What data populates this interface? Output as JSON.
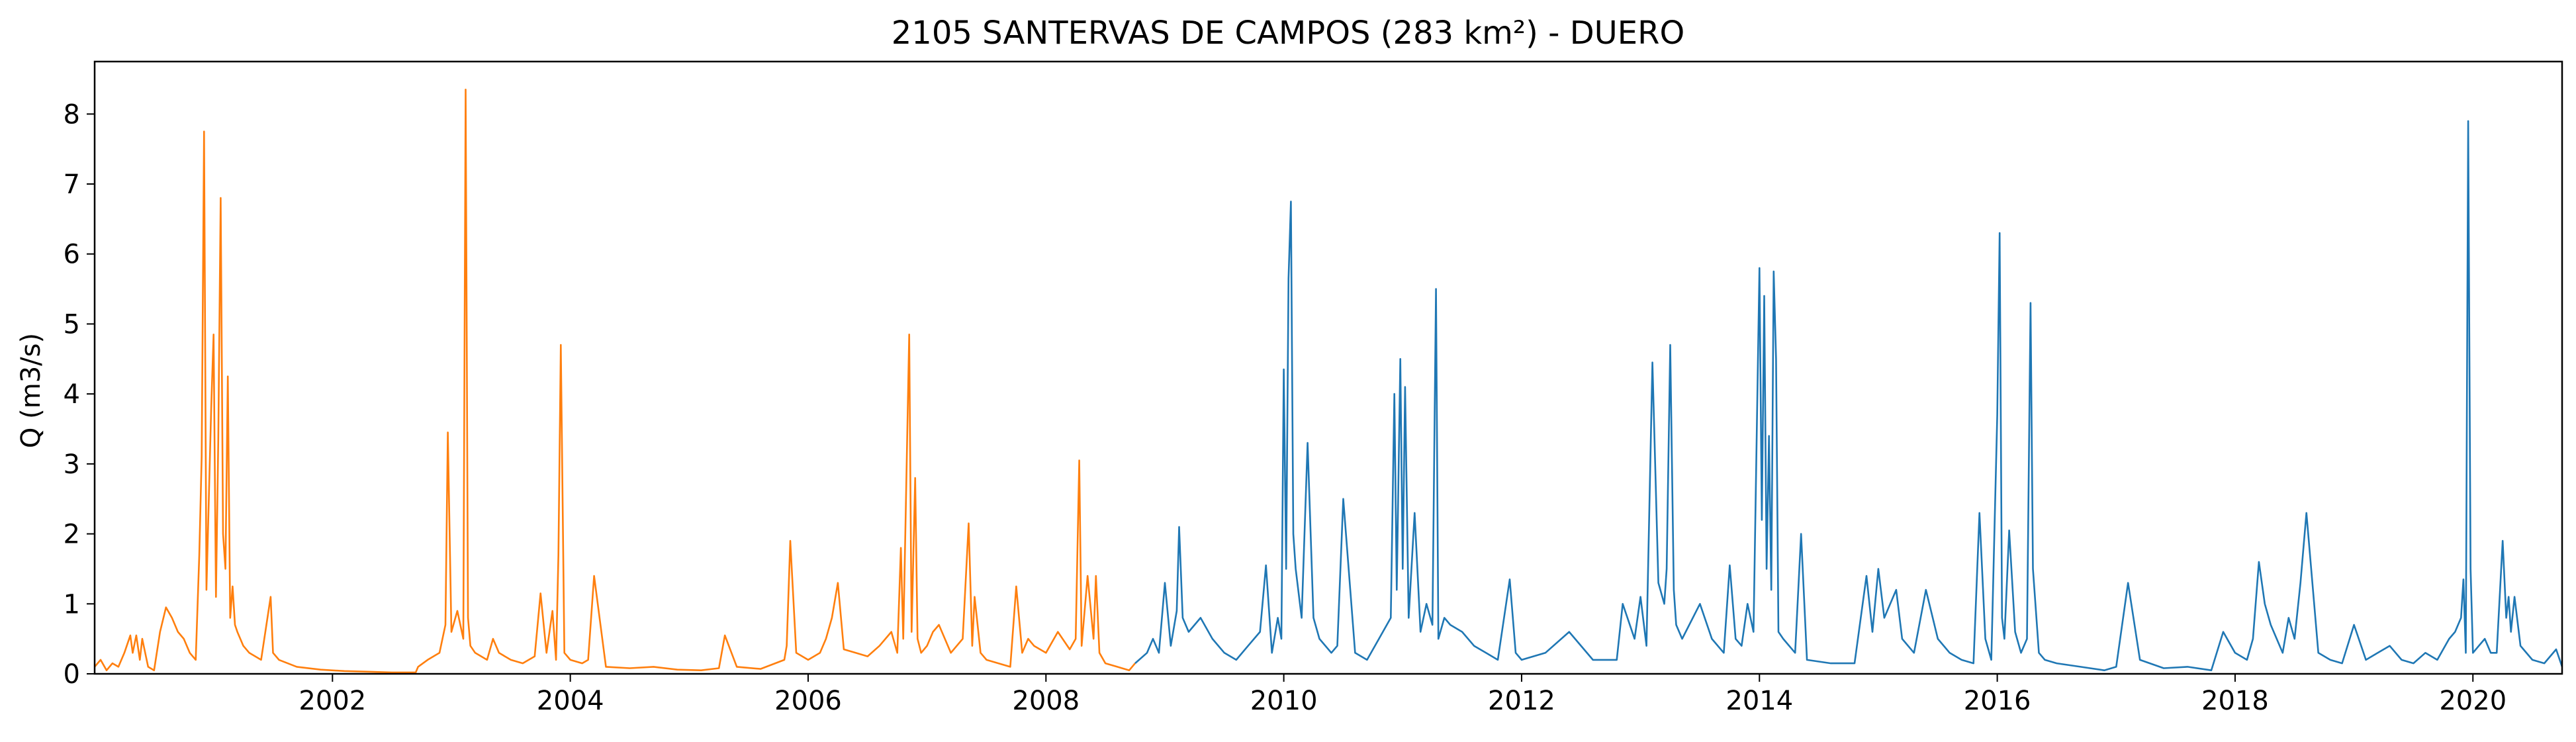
{
  "chart_data": {
    "type": "line",
    "title": "2105 SANTERVAS DE CAMPOS (283 km²) - DUERO",
    "xlabel": "",
    "ylabel": "Q (m3/s)",
    "xlim": [
      2000.0,
      2020.75
    ],
    "ylim": [
      0,
      8.75
    ],
    "x_ticks": [
      2002,
      2004,
      2006,
      2008,
      2010,
      2012,
      2014,
      2016,
      2018,
      2020
    ],
    "y_ticks": [
      0,
      1,
      2,
      3,
      4,
      5,
      6,
      7,
      8
    ],
    "grid": false,
    "legend": "none",
    "series": [
      {
        "color": "#ff7f0e",
        "x": [
          2000.0,
          2000.05,
          2000.1,
          2000.15,
          2000.2,
          2000.25,
          2000.3,
          2000.32,
          2000.35,
          2000.38,
          2000.4,
          2000.45,
          2000.5,
          2000.55,
          2000.6,
          2000.65,
          2000.7,
          2000.75,
          2000.8,
          2000.85,
          2000.88,
          2000.9,
          2000.92,
          2000.94,
          2000.96,
          2000.98,
          2001.0,
          2001.02,
          2001.04,
          2001.06,
          2001.08,
          2001.1,
          2001.12,
          2001.14,
          2001.16,
          2001.18,
          2001.2,
          2001.25,
          2001.3,
          2001.4,
          2001.48,
          2001.5,
          2001.55,
          2001.7,
          2001.9,
          2002.1,
          2002.3,
          2002.5,
          2002.7,
          2002.72,
          2002.8,
          2002.9,
          2002.95,
          2002.97,
          2003.0,
          2003.05,
          2003.1,
          2003.12,
          2003.14,
          2003.16,
          2003.2,
          2003.3,
          2003.35,
          2003.4,
          2003.5,
          2003.6,
          2003.7,
          2003.75,
          2003.8,
          2003.85,
          2003.88,
          2003.9,
          2003.92,
          2003.95,
          2004.0,
          2004.1,
          2004.15,
          2004.2,
          2004.3,
          2004.5,
          2004.7,
          2004.9,
          2005.1,
          2005.25,
          2005.3,
          2005.4,
          2005.6,
          2005.8,
          2005.82,
          2005.85,
          2005.9,
          2006.0,
          2006.1,
          2006.15,
          2006.2,
          2006.25,
          2006.3,
          2006.4,
          2006.5,
          2006.6,
          2006.7,
          2006.75,
          2006.78,
          2006.8,
          2006.85,
          2006.87,
          2006.9,
          2006.92,
          2006.95,
          2007.0,
          2007.05,
          2007.1,
          2007.2,
          2007.3,
          2007.35,
          2007.38,
          2007.4,
          2007.45,
          2007.5,
          2007.6,
          2007.7,
          2007.75,
          2007.8,
          2007.85,
          2007.9,
          2008.0,
          2008.1,
          2008.2,
          2008.25,
          2008.28,
          2008.3,
          2008.35,
          2008.4,
          2008.42,
          2008.45,
          2008.5,
          2008.6,
          2008.7,
          2008.75
        ],
        "values": [
          0.1,
          0.2,
          0.05,
          0.15,
          0.1,
          0.3,
          0.55,
          0.3,
          0.55,
          0.2,
          0.5,
          0.1,
          0.05,
          0.6,
          0.95,
          0.8,
          0.6,
          0.5,
          0.3,
          0.2,
          1.7,
          3.1,
          7.75,
          1.2,
          2.5,
          3.8,
          4.85,
          1.1,
          3.35,
          6.8,
          2.0,
          1.5,
          4.25,
          0.8,
          1.25,
          0.7,
          0.6,
          0.4,
          0.3,
          0.2,
          1.1,
          0.3,
          0.2,
          0.1,
          0.06,
          0.04,
          0.03,
          0.02,
          0.02,
          0.1,
          0.2,
          0.3,
          0.7,
          3.45,
          0.6,
          0.9,
          0.5,
          8.35,
          0.8,
          0.4,
          0.3,
          0.2,
          0.5,
          0.3,
          0.2,
          0.15,
          0.25,
          1.15,
          0.3,
          0.9,
          0.2,
          1.7,
          4.7,
          0.3,
          0.2,
          0.15,
          0.2,
          1.4,
          0.1,
          0.08,
          0.1,
          0.06,
          0.05,
          0.08,
          0.55,
          0.1,
          0.07,
          0.2,
          0.4,
          1.9,
          0.3,
          0.2,
          0.3,
          0.5,
          0.8,
          1.3,
          0.35,
          0.3,
          0.25,
          0.4,
          0.6,
          0.3,
          1.8,
          0.5,
          4.85,
          0.6,
          2.8,
          0.5,
          0.3,
          0.4,
          0.6,
          0.7,
          0.3,
          0.5,
          2.15,
          0.4,
          1.1,
          0.3,
          0.2,
          0.15,
          0.1,
          1.25,
          0.3,
          0.5,
          0.4,
          0.3,
          0.6,
          0.35,
          0.5,
          3.05,
          0.4,
          1.4,
          0.5,
          1.4,
          0.3,
          0.15,
          0.1,
          0.05,
          0.15
        ]
      },
      {
        "color": "#1f77b4",
        "x": [
          2008.75,
          2008.85,
          2008.9,
          2008.95,
          2009.0,
          2009.05,
          2009.1,
          2009.12,
          2009.15,
          2009.2,
          2009.3,
          2009.4,
          2009.5,
          2009.6,
          2009.7,
          2009.8,
          2009.85,
          2009.9,
          2009.95,
          2009.98,
          2010.0,
          2010.02,
          2010.04,
          2010.06,
          2010.08,
          2010.1,
          2010.15,
          2010.2,
          2010.25,
          2010.3,
          2010.4,
          2010.45,
          2010.5,
          2010.6,
          2010.7,
          2010.8,
          2010.9,
          2010.93,
          2010.95,
          2010.98,
          2011.0,
          2011.02,
          2011.05,
          2011.1,
          2011.15,
          2011.2,
          2011.25,
          2011.28,
          2011.3,
          2011.35,
          2011.4,
          2011.5,
          2011.6,
          2011.7,
          2011.8,
          2011.9,
          2011.95,
          2012.0,
          2012.2,
          2012.4,
          2012.6,
          2012.8,
          2012.85,
          2012.95,
          2013.0,
          2013.05,
          2013.1,
          2013.15,
          2013.2,
          2013.22,
          2013.25,
          2013.28,
          2013.3,
          2013.35,
          2013.5,
          2013.6,
          2013.7,
          2013.75,
          2013.8,
          2013.85,
          2013.9,
          2013.95,
          2014.0,
          2014.02,
          2014.04,
          2014.06,
          2014.08,
          2014.1,
          2014.12,
          2014.14,
          2014.16,
          2014.2,
          2014.3,
          2014.35,
          2014.4,
          2014.6,
          2014.8,
          2014.9,
          2014.95,
          2015.0,
          2015.05,
          2015.1,
          2015.15,
          2015.2,
          2015.3,
          2015.4,
          2015.5,
          2015.6,
          2015.7,
          2015.8,
          2015.85,
          2015.9,
          2015.95,
          2016.0,
          2016.02,
          2016.04,
          2016.06,
          2016.1,
          2016.15,
          2016.2,
          2016.25,
          2016.28,
          2016.3,
          2016.35,
          2016.4,
          2016.5,
          2016.7,
          2016.9,
          2017.0,
          2017.1,
          2017.2,
          2017.4,
          2017.6,
          2017.8,
          2017.9,
          2018.0,
          2018.1,
          2018.15,
          2018.2,
          2018.25,
          2018.3,
          2018.35,
          2018.4,
          2018.45,
          2018.5,
          2018.55,
          2018.6,
          2018.7,
          2018.8,
          2018.9,
          2019.0,
          2019.1,
          2019.2,
          2019.3,
          2019.4,
          2019.5,
          2019.6,
          2019.7,
          2019.8,
          2019.85,
          2019.9,
          2019.92,
          2019.94,
          2019.96,
          2019.98,
          2020.0,
          2020.05,
          2020.1,
          2020.15,
          2020.2,
          2020.25,
          2020.28,
          2020.3,
          2020.32,
          2020.35,
          2020.4,
          2020.5,
          2020.6,
          2020.7,
          2020.75
        ],
        "values": [
          0.15,
          0.3,
          0.5,
          0.3,
          1.3,
          0.4,
          0.9,
          2.1,
          0.8,
          0.6,
          0.8,
          0.5,
          0.3,
          0.2,
          0.4,
          0.6,
          1.55,
          0.3,
          0.8,
          0.5,
          4.35,
          1.5,
          5.65,
          6.75,
          2.0,
          1.5,
          0.8,
          3.3,
          0.8,
          0.5,
          0.3,
          0.4,
          2.5,
          0.3,
          0.2,
          0.5,
          0.8,
          4.0,
          1.2,
          4.5,
          1.5,
          4.1,
          0.8,
          2.3,
          0.6,
          1.0,
          0.7,
          5.5,
          0.5,
          0.8,
          0.7,
          0.6,
          0.4,
          0.3,
          0.2,
          1.35,
          0.3,
          0.2,
          0.3,
          0.6,
          0.2,
          0.2,
          1.0,
          0.5,
          1.1,
          0.4,
          4.45,
          1.3,
          1.0,
          1.5,
          4.7,
          1.2,
          0.7,
          0.5,
          1.0,
          0.5,
          0.3,
          1.55,
          0.5,
          0.4,
          1.0,
          0.6,
          5.8,
          2.2,
          5.4,
          1.5,
          3.4,
          1.2,
          5.75,
          4.5,
          0.6,
          0.5,
          0.3,
          2.0,
          0.2,
          0.15,
          0.15,
          1.4,
          0.6,
          1.5,
          0.8,
          1.0,
          1.2,
          0.5,
          0.3,
          1.2,
          0.5,
          0.3,
          0.2,
          0.15,
          2.3,
          0.5,
          0.2,
          3.7,
          6.3,
          0.8,
          0.5,
          2.05,
          0.6,
          0.3,
          0.5,
          5.3,
          1.5,
          0.3,
          0.2,
          0.15,
          0.1,
          0.05,
          0.1,
          1.3,
          0.2,
          0.08,
          0.1,
          0.05,
          0.6,
          0.3,
          0.2,
          0.5,
          1.6,
          1.0,
          0.7,
          0.5,
          0.3,
          0.8,
          0.5,
          1.3,
          2.3,
          0.3,
          0.2,
          0.15,
          0.7,
          0.2,
          0.3,
          0.4,
          0.2,
          0.15,
          0.3,
          0.2,
          0.5,
          0.6,
          0.8,
          1.35,
          0.3,
          7.9,
          1.5,
          0.3,
          0.4,
          0.5,
          0.3,
          0.3,
          1.9,
          0.8,
          1.1,
          0.6,
          1.1,
          0.4,
          0.2,
          0.15,
          0.35,
          0.1
        ]
      }
    ]
  }
}
